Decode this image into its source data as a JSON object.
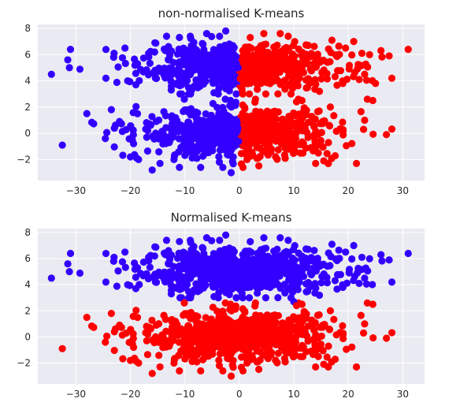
{
  "chart_data": [
    {
      "type": "scatter",
      "title": "non-normalised K-means",
      "xlabel": "",
      "ylabel": "",
      "xlim": [
        -37,
        34
      ],
      "ylim": [
        -3.6,
        8.3
      ],
      "xticks": [
        -30,
        -20,
        -10,
        0,
        10,
        20,
        30
      ],
      "yticks": [
        -2,
        0,
        2,
        4,
        6,
        8
      ],
      "xtick_labels": [
        "−30",
        "−20",
        "−10",
        "0",
        "10",
        "20",
        "30"
      ],
      "ytick_labels": [
        "−2",
        "0",
        "2",
        "4",
        "6",
        "8"
      ],
      "background": "#eaeaf2",
      "grid": true,
      "cluster_split": "x",
      "series": [
        {
          "color": "#3300ff",
          "outliers": [
            [
              -34.5,
              4.5
            ],
            [
              -31.0,
              6.4
            ],
            [
              -31.5,
              5.6
            ],
            [
              -31.2,
              5.0
            ],
            [
              -32.5,
              -0.9
            ],
            [
              -28.0,
              1.5
            ],
            [
              -24.5,
              4.2
            ],
            [
              -24.6,
              -0.4
            ],
            [
              -23.5,
              1.8
            ],
            [
              -23.0,
              6.1
            ],
            [
              -22.0,
              0.9
            ],
            [
              -21.0,
              6.5
            ],
            [
              -20.5,
              4.0
            ],
            [
              -20.0,
              -1.8
            ],
            [
              -16.0,
              -2.8
            ],
            [
              -18.5,
              -2.0
            ],
            [
              -15.5,
              6.9
            ],
            [
              -19.0,
              3.7
            ],
            [
              -12.0,
              -2.0
            ],
            [
              -11.0,
              -2.6
            ],
            [
              -6.0,
              7.6
            ],
            [
              -2.5,
              7.8
            ],
            [
              -1.5,
              -3.0
            ],
            [
              -9.0,
              7.4
            ],
            [
              -13.0,
              6.2
            ],
            [
              -17.0,
              -0.3
            ]
          ]
        },
        {
          "color": "#ff0000",
          "outliers": [
            [
              31.0,
              6.4
            ],
            [
              28.0,
              4.2
            ],
            [
              27.5,
              5.9
            ],
            [
              26.0,
              6.3
            ],
            [
              27.0,
              -0.1
            ],
            [
              25.0,
              3.8
            ],
            [
              24.5,
              2.5
            ],
            [
              23.5,
              2.6
            ],
            [
              23.0,
              4.5
            ],
            [
              22.0,
              4.1
            ],
            [
              21.5,
              -2.3
            ],
            [
              21.0,
              7.0
            ],
            [
              22.5,
              6.1
            ],
            [
              19.0,
              3.8
            ],
            [
              19.5,
              6.5
            ],
            [
              17.0,
              7.1
            ],
            [
              14.5,
              -1.5
            ],
            [
              15.5,
              -2.1
            ],
            [
              14.0,
              -2.3
            ],
            [
              11.5,
              2.5
            ],
            [
              10.5,
              2.4
            ],
            [
              7.5,
              7.6
            ],
            [
              2.0,
              7.3
            ],
            [
              4.5,
              7.6
            ],
            [
              23.0,
              1.0
            ],
            [
              22.8,
              0.3
            ]
          ]
        }
      ]
    },
    {
      "type": "scatter",
      "title": "Normalised K-means",
      "xlabel": "",
      "ylabel": "",
      "xlim": [
        -37,
        34
      ],
      "ylim": [
        -3.6,
        8.3
      ],
      "xticks": [
        -30,
        -20,
        -10,
        0,
        10,
        20,
        30
      ],
      "yticks": [
        -2,
        0,
        2,
        4,
        6,
        8
      ],
      "xtick_labels": [
        "−30",
        "−20",
        "−10",
        "0",
        "10",
        "20",
        "30"
      ],
      "ytick_labels": [
        "−2",
        "0",
        "2",
        "4",
        "6",
        "8"
      ],
      "background": "#eaeaf2",
      "grid": true,
      "cluster_split": "y",
      "series": [
        {
          "color": "#3300ff",
          "outliers": [
            [
              -34.5,
              4.5
            ],
            [
              -31.0,
              6.4
            ],
            [
              -31.5,
              5.6
            ],
            [
              -31.2,
              5.0
            ],
            [
              -24.5,
              4.2
            ],
            [
              -23.0,
              6.1
            ],
            [
              -21.0,
              6.5
            ],
            [
              -20.5,
              4.0
            ],
            [
              -15.5,
              6.9
            ],
            [
              -19.0,
              3.7
            ],
            [
              -6.0,
              7.6
            ],
            [
              -2.5,
              7.8
            ],
            [
              -9.0,
              7.4
            ],
            [
              -13.0,
              6.2
            ],
            [
              31.0,
              6.4
            ],
            [
              28.0,
              4.2
            ],
            [
              27.5,
              5.9
            ],
            [
              26.0,
              6.3
            ],
            [
              23.0,
              4.5
            ],
            [
              22.0,
              4.1
            ],
            [
              21.0,
              7.0
            ],
            [
              22.5,
              6.1
            ],
            [
              19.0,
              3.8
            ],
            [
              19.5,
              6.5
            ],
            [
              17.0,
              7.1
            ],
            [
              7.5,
              7.6
            ],
            [
              2.0,
              7.3
            ],
            [
              4.5,
              7.6
            ],
            [
              10.0,
              2.7
            ]
          ]
        },
        {
          "color": "#ff0000",
          "outliers": [
            [
              -32.5,
              -0.9
            ],
            [
              -28.0,
              1.5
            ],
            [
              -24.6,
              -0.4
            ],
            [
              -23.5,
              1.8
            ],
            [
              -22.0,
              0.9
            ],
            [
              -20.0,
              -1.8
            ],
            [
              -16.0,
              -2.8
            ],
            [
              -18.5,
              -2.0
            ],
            [
              -12.0,
              -2.0
            ],
            [
              -11.0,
              -2.6
            ],
            [
              -1.5,
              -3.0
            ],
            [
              -17.0,
              -0.3
            ],
            [
              27.0,
              -0.1
            ],
            [
              24.5,
              2.5
            ],
            [
              23.5,
              2.6
            ],
            [
              21.5,
              -2.3
            ],
            [
              14.5,
              -1.5
            ],
            [
              15.5,
              -2.1
            ],
            [
              14.0,
              -2.3
            ],
            [
              11.5,
              2.5
            ],
            [
              10.5,
              2.4
            ],
            [
              23.0,
              1.0
            ],
            [
              22.8,
              0.3
            ]
          ]
        }
      ]
    }
  ]
}
